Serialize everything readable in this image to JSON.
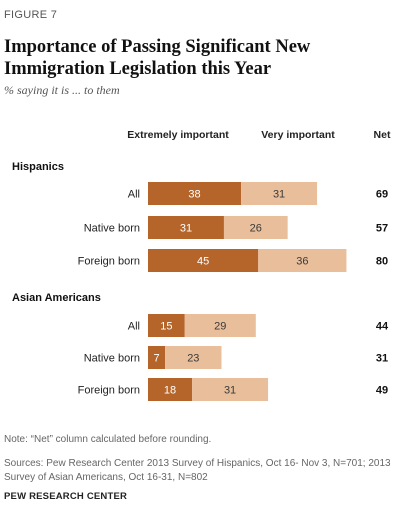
{
  "figure_label": "FIGURE 7",
  "title": "Importance of Passing Significant New Immigration Legislation this Year",
  "subtitle": "% saying it is ... to them",
  "note": "Note: “Net” column calculated before rounding.",
  "sources": "Sources: Pew Research Center 2013 Survey of Hispanics, Oct 16- Nov 3, N=701; 2013 Survey of Asian Americans, Oct 16-31, N=802",
  "credit": "PEW RESEARCH CENTER",
  "colors": {
    "extremely": "#B5652A",
    "very": "#E9BE9B"
  },
  "chart_data": {
    "type": "bar",
    "orientation": "horizontal",
    "stacked": true,
    "series": [
      {
        "name": "Extremely important",
        "color": "#B5652A"
      },
      {
        "name": "Very important",
        "color": "#E9BE9B"
      }
    ],
    "net_label": "Net",
    "groups": [
      {
        "name": "Hispanics",
        "rows": [
          {
            "label": "All",
            "values": [
              38,
              31
            ],
            "net": 69
          },
          {
            "label": "Native born",
            "values": [
              31,
              26
            ],
            "net": 57
          },
          {
            "label": "Foreign born",
            "values": [
              45,
              36
            ],
            "net": 80
          }
        ]
      },
      {
        "name": "Asian Americans",
        "rows": [
          {
            "label": "All",
            "values": [
              15,
              29
            ],
            "net": 44
          },
          {
            "label": "Native born",
            "values": [
              7,
              23
            ],
            "net": 31
          },
          {
            "label": "Foreign born",
            "values": [
              18,
              31
            ],
            "net": 49
          }
        ]
      }
    ]
  }
}
